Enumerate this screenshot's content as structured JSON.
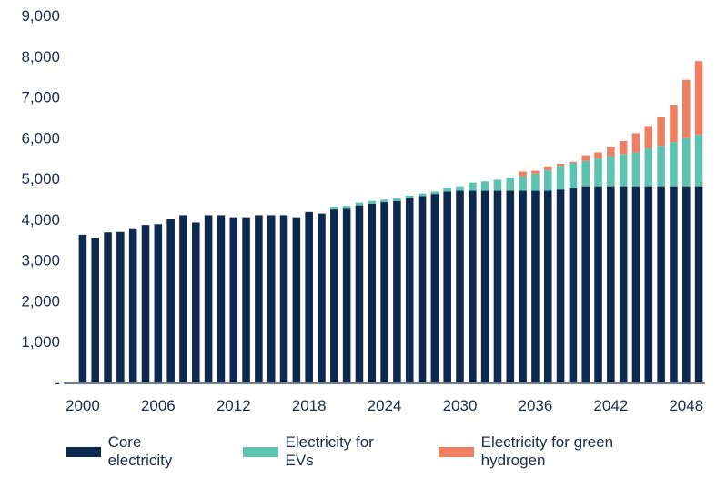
{
  "chart_data": {
    "type": "bar",
    "stacked": true,
    "x": [
      2000,
      2001,
      2002,
      2003,
      2004,
      2005,
      2006,
      2007,
      2008,
      2009,
      2010,
      2011,
      2012,
      2013,
      2014,
      2015,
      2016,
      2017,
      2018,
      2019,
      2020,
      2021,
      2022,
      2023,
      2024,
      2025,
      2026,
      2027,
      2028,
      2029,
      2030,
      2031,
      2032,
      2033,
      2034,
      2035,
      2036,
      2037,
      2038,
      2039,
      2040,
      2041,
      2042,
      2043,
      2044,
      2045,
      2046,
      2047,
      2048,
      2049
    ],
    "x_tick_labels": [
      "2000",
      "2006",
      "2012",
      "2018",
      "2024",
      "2030",
      "2036",
      "2042",
      "2048"
    ],
    "y_tick_labels": [
      "-",
      "1,000",
      "2,000",
      "3,000",
      "4,000",
      "5,000",
      "6,000",
      "7,000",
      "8,000",
      "9,000"
    ],
    "ylim": [
      0,
      9000
    ],
    "grid": false,
    "legend_position": "bottom",
    "series": [
      {
        "name": "Core electricity",
        "color": "#0d2a4e",
        "values": [
          3620,
          3550,
          3680,
          3690,
          3780,
          3860,
          3880,
          4010,
          4100,
          3920,
          4100,
          4100,
          4050,
          4050,
          4100,
          4100,
          4100,
          4050,
          4180,
          4140,
          4240,
          4260,
          4340,
          4380,
          4420,
          4450,
          4520,
          4570,
          4620,
          4680,
          4700,
          4700,
          4700,
          4700,
          4700,
          4700,
          4700,
          4700,
          4730,
          4760,
          4810,
          4810,
          4810,
          4810,
          4810,
          4810,
          4810,
          4810,
          4810,
          4810
        ]
      },
      {
        "name": "Electricity for EVs",
        "color": "#5ec2b0",
        "values": [
          0,
          0,
          0,
          0,
          0,
          0,
          0,
          0,
          0,
          0,
          0,
          0,
          0,
          0,
          0,
          0,
          0,
          0,
          0,
          0,
          70,
          70,
          70,
          70,
          60,
          60,
          60,
          60,
          60,
          100,
          110,
          200,
          230,
          270,
          320,
          360,
          420,
          500,
          580,
          620,
          620,
          680,
          740,
          790,
          830,
          930,
          990,
          1080,
          1180,
          1270
        ]
      },
      {
        "name": "Electricity for green hydrogen",
        "color": "#ef7f63",
        "values": [
          0,
          0,
          0,
          0,
          0,
          0,
          0,
          0,
          0,
          0,
          0,
          0,
          0,
          0,
          0,
          0,
          0,
          0,
          0,
          0,
          0,
          0,
          0,
          0,
          0,
          0,
          0,
          0,
          0,
          0,
          0,
          0,
          0,
          0,
          0,
          110,
          70,
          100,
          50,
          30,
          140,
          150,
          230,
          320,
          470,
          550,
          720,
          920,
          1430,
          1800
        ]
      }
    ]
  }
}
